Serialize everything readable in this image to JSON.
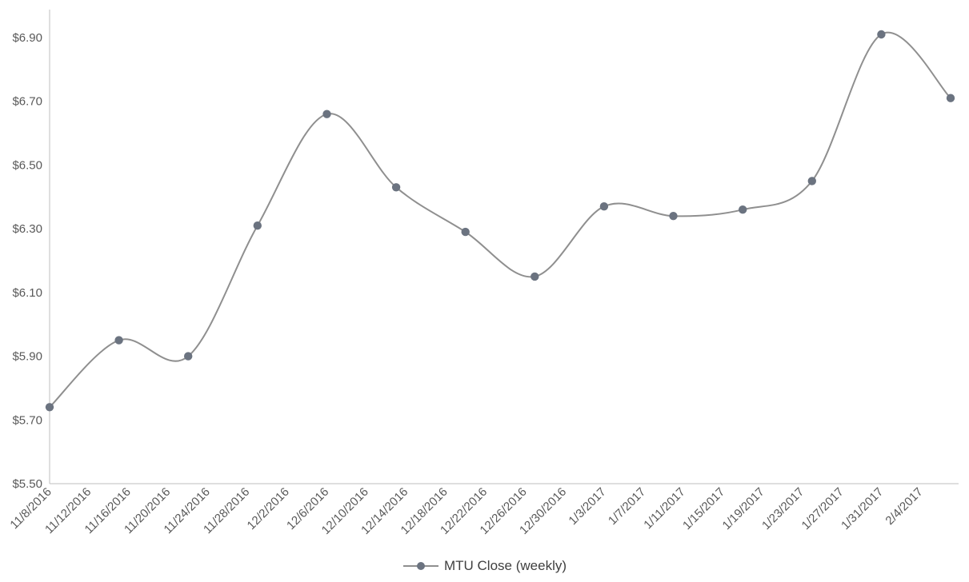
{
  "chart_data": {
    "type": "line",
    "title": "",
    "smooth": true,
    "grid": false,
    "legend": {
      "label": "MTU Close (weekly)",
      "position": "bottom"
    },
    "series": [
      {
        "name": "MTU Close (weekly)",
        "points": [
          {
            "date": "11/8/2016",
            "day": 0,
            "value": 5.74
          },
          {
            "date": "11/15/2016",
            "day": 7,
            "value": 5.95
          },
          {
            "date": "11/22/2016",
            "day": 14,
            "value": 5.9
          },
          {
            "date": "11/29/2016",
            "day": 21,
            "value": 6.31
          },
          {
            "date": "12/6/2016",
            "day": 28,
            "value": 6.66
          },
          {
            "date": "12/13/2016",
            "day": 35,
            "value": 6.43
          },
          {
            "date": "12/20/2016",
            "day": 42,
            "value": 6.29
          },
          {
            "date": "12/27/2016",
            "day": 49,
            "value": 6.15
          },
          {
            "date": "1/3/2017",
            "day": 56,
            "value": 6.37
          },
          {
            "date": "1/10/2017",
            "day": 63,
            "value": 6.34
          },
          {
            "date": "1/17/2017",
            "day": 70,
            "value": 6.36
          },
          {
            "date": "1/24/2017",
            "day": 77,
            "value": 6.45
          },
          {
            "date": "1/31/2017",
            "day": 84,
            "value": 6.91
          },
          {
            "date": "2/7/2017",
            "day": 91,
            "value": 6.71
          }
        ]
      }
    ],
    "x_axis": {
      "label_rotation_deg": -45,
      "day_min": 0,
      "day_max": 91,
      "ticks": [
        {
          "label": "11/8/2016",
          "day": 0
        },
        {
          "label": "11/12/2016",
          "day": 4
        },
        {
          "label": "11/16/2016",
          "day": 8
        },
        {
          "label": "11/20/2016",
          "day": 12
        },
        {
          "label": "11/24/2016",
          "day": 16
        },
        {
          "label": "11/28/2016",
          "day": 20
        },
        {
          "label": "12/2/2016",
          "day": 24
        },
        {
          "label": "12/6/2016",
          "day": 28
        },
        {
          "label": "12/10/2016",
          "day": 32
        },
        {
          "label": "12/14/2016",
          "day": 36
        },
        {
          "label": "12/18/2016",
          "day": 40
        },
        {
          "label": "12/22/2016",
          "day": 44
        },
        {
          "label": "12/26/2016",
          "day": 48
        },
        {
          "label": "12/30/2016",
          "day": 52
        },
        {
          "label": "1/3/2017",
          "day": 56
        },
        {
          "label": "1/7/2017",
          "day": 60
        },
        {
          "label": "1/11/2017",
          "day": 64
        },
        {
          "label": "1/15/2017",
          "day": 68
        },
        {
          "label": "1/19/2017",
          "day": 72
        },
        {
          "label": "1/23/2017",
          "day": 76
        },
        {
          "label": "1/27/2017",
          "day": 80
        },
        {
          "label": "1/31/2017",
          "day": 84
        },
        {
          "label": "2/4/2017",
          "day": 88
        }
      ]
    },
    "y_axis": {
      "min": 5.5,
      "max": 6.9,
      "ticks": [
        {
          "label": "$5.50",
          "value": 5.5
        },
        {
          "label": "$5.70",
          "value": 5.7
        },
        {
          "label": "$5.90",
          "value": 5.9
        },
        {
          "label": "$6.10",
          "value": 6.1
        },
        {
          "label": "$6.30",
          "value": 6.3
        },
        {
          "label": "$6.50",
          "value": 6.5
        },
        {
          "label": "$6.70",
          "value": 6.7
        },
        {
          "label": "$6.90",
          "value": 6.9
        }
      ]
    }
  },
  "colors": {
    "background": "#ffffff",
    "axis": "#bfbfbf",
    "tick_text": "#595959",
    "line": "#8f8f8f",
    "marker": "#6b7380",
    "legend_text": "#3f3f3f"
  }
}
